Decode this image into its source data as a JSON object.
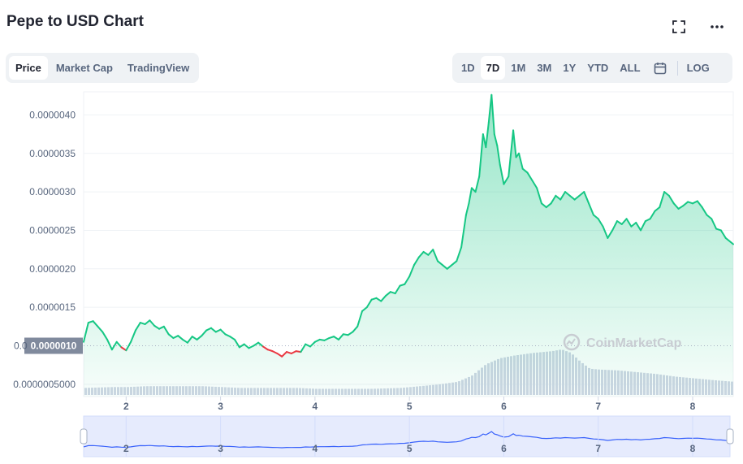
{
  "header": {
    "title": "Pepe to USD Chart"
  },
  "icons": {
    "fullscreen": "fullscreen-icon",
    "more": "more-icon",
    "calendar": "calendar-icon"
  },
  "metric_tabs": [
    {
      "label": "Price",
      "active": true
    },
    {
      "label": "Market Cap",
      "active": false
    },
    {
      "label": "TradingView",
      "active": false
    }
  ],
  "range_tabs": [
    {
      "label": "1D",
      "active": false
    },
    {
      "label": "7D",
      "active": true
    },
    {
      "label": "1M",
      "active": false
    },
    {
      "label": "3M",
      "active": false
    },
    {
      "label": "1Y",
      "active": false
    },
    {
      "label": "YTD",
      "active": false
    },
    {
      "label": "ALL",
      "active": false
    }
  ],
  "log_label": "LOG",
  "watermark": "CoinMarketCap",
  "colors": {
    "up": "#16c784",
    "down": "#ea3943",
    "volume": "#cfd6e4",
    "navigator": "#3861fb"
  },
  "chart_data": {
    "type": "line",
    "title": "",
    "xlabel": "",
    "ylabel": "",
    "y_ticks": [
      "0.0000040",
      "0.0000035",
      "0.0000030",
      "0.0000025",
      "0.0000020",
      "0.0000015",
      "0.0000005000"
    ],
    "y_tick_values": [
      4e-06,
      3.5e-06,
      3e-06,
      2.5e-06,
      2e-06,
      1.5e-06,
      5e-07
    ],
    "ylim": [
      3.4e-07,
      4.3e-06
    ],
    "x_ticks": [
      "2",
      "3",
      "4",
      "5",
      "6",
      "7",
      "8"
    ],
    "x_tick_values": [
      2,
      3,
      4,
      5,
      6,
      7,
      8
    ],
    "xlim": [
      1.55,
      8.43
    ],
    "current_price_label": "0.0000010",
    "current_price_left_fragment": "0.0",
    "open_price": 1e-06,
    "series": [
      {
        "x": [
          1.55,
          1.6,
          1.65,
          1.7,
          1.75,
          1.8,
          1.85,
          1.9,
          1.95,
          2.0,
          2.05,
          2.1,
          2.15,
          2.2,
          2.25,
          2.3,
          2.35,
          2.4,
          2.45,
          2.5,
          2.55,
          2.6,
          2.65,
          2.7,
          2.75,
          2.8,
          2.85,
          2.9,
          2.95,
          3.0,
          3.05,
          3.1,
          3.15,
          3.2,
          3.25,
          3.3,
          3.35,
          3.4,
          3.45,
          3.5,
          3.55,
          3.6,
          3.65,
          3.7,
          3.75,
          3.8,
          3.85,
          3.9,
          3.95,
          4.0,
          4.05,
          4.1,
          4.15,
          4.2,
          4.25,
          4.3,
          4.35,
          4.4,
          4.45,
          4.5,
          4.55,
          4.6,
          4.65,
          4.7,
          4.75,
          4.8,
          4.85,
          4.9,
          4.95,
          5.0,
          5.05,
          5.1,
          5.15,
          5.2,
          5.25,
          5.3,
          5.35,
          5.4,
          5.45,
          5.5,
          5.55,
          5.6,
          5.63,
          5.66,
          5.7,
          5.74,
          5.78,
          5.81,
          5.84,
          5.87,
          5.9,
          5.93,
          5.96,
          6.0,
          6.05,
          6.1,
          6.13,
          6.16,
          6.2,
          6.25,
          6.3,
          6.35,
          6.4,
          6.45,
          6.5,
          6.55,
          6.6,
          6.65,
          6.7,
          6.75,
          6.8,
          6.85,
          6.9,
          6.95,
          7.0,
          7.05,
          7.1,
          7.15,
          7.2,
          7.25,
          7.3,
          7.35,
          7.4,
          7.45,
          7.5,
          7.55,
          7.6,
          7.65,
          7.7,
          7.75,
          7.8,
          7.85,
          7.9,
          7.95,
          8.0,
          8.05,
          8.1,
          8.15,
          8.2,
          8.25,
          8.3,
          8.35,
          8.4,
          8.43
        ],
        "y": [
          1.05e-06,
          1.3e-06,
          1.32e-06,
          1.25e-06,
          1.18e-06,
          1.08e-06,
          9.5e-07,
          1.05e-06,
          9.8e-07,
          9.4e-07,
          1.05e-06,
          1.2e-06,
          1.3e-06,
          1.28e-06,
          1.33e-06,
          1.26e-06,
          1.22e-06,
          1.25e-06,
          1.15e-06,
          1.1e-06,
          1.13e-06,
          1.08e-06,
          1.04e-06,
          1.12e-06,
          1.08e-06,
          1.13e-06,
          1.2e-06,
          1.23e-06,
          1.18e-06,
          1.21e-06,
          1.15e-06,
          1.12e-06,
          1.08e-06,
          9.8e-07,
          1.02e-06,
          9.7e-07,
          1e-06,
          1.04e-06,
          9.9e-07,
          9.5e-07,
          9.3e-07,
          9e-07,
          8.6e-07,
          9.2e-07,
          9e-07,
          9.3e-07,
          9.2e-07,
          1.02e-06,
          9.9e-07,
          1.05e-06,
          1.08e-06,
          1.07e-06,
          1.1e-06,
          1.12e-06,
          1.08e-06,
          1.15e-06,
          1.14e-06,
          1.18e-06,
          1.25e-06,
          1.45e-06,
          1.5e-06,
          1.6e-06,
          1.62e-06,
          1.58e-06,
          1.65e-06,
          1.7e-06,
          1.68e-06,
          1.78e-06,
          1.8e-06,
          1.9e-06,
          2.05e-06,
          2.15e-06,
          2.22e-06,
          2.18e-06,
          2.25e-06,
          2.1e-06,
          2.05e-06,
          2e-06,
          2.05e-06,
          2.1e-06,
          2.28e-06,
          2.7e-06,
          2.85e-06,
          3.05e-06,
          3e-06,
          3.2e-06,
          3.75e-06,
          3.58e-06,
          3.9e-06,
          4.26e-06,
          3.75e-06,
          3.6e-06,
          3.35e-06,
          3.1e-06,
          3.2e-06,
          3.8e-06,
          3.45e-06,
          3.5e-06,
          3.3e-06,
          3.25e-06,
          3.15e-06,
          3.05e-06,
          2.85e-06,
          2.8e-06,
          2.85e-06,
          2.95e-06,
          2.9e-06,
          3e-06,
          2.95e-06,
          2.9e-06,
          2.95e-06,
          3e-06,
          2.85e-06,
          2.7e-06,
          2.65e-06,
          2.55e-06,
          2.4e-06,
          2.5e-06,
          2.62e-06,
          2.58e-06,
          2.65e-06,
          2.55e-06,
          2.6e-06,
          2.5e-06,
          2.62e-06,
          2.65e-06,
          2.75e-06,
          2.8e-06,
          3e-06,
          2.95e-06,
          2.85e-06,
          2.78e-06,
          2.82e-06,
          2.87e-06,
          2.85e-06,
          2.88e-06,
          2.8e-06,
          2.7e-06,
          2.65e-06,
          2.52e-06,
          2.5e-06,
          2.4e-06,
          2.35e-06,
          2.32e-06
        ]
      }
    ],
    "volume": {
      "x": [
        1.55,
        1.85,
        2.0,
        2.2,
        2.5,
        2.8,
        3.0,
        3.2,
        3.5,
        3.8,
        4.0,
        4.3,
        4.6,
        4.9,
        5.1,
        5.3,
        5.5,
        5.65,
        5.8,
        5.95,
        6.1,
        6.3,
        6.5,
        6.6,
        6.7,
        6.8,
        6.9,
        7.0,
        7.2,
        7.4,
        7.6,
        7.8,
        8.0,
        8.2,
        8.43
      ],
      "values": [
        8,
        9,
        9,
        10,
        10,
        10,
        9,
        8,
        8,
        8,
        7,
        7,
        7,
        8,
        10,
        12,
        15,
        22,
        35,
        42,
        45,
        48,
        50,
        52,
        48,
        38,
        30,
        29,
        28,
        26,
        24,
        21,
        19,
        17,
        15
      ]
    }
  }
}
